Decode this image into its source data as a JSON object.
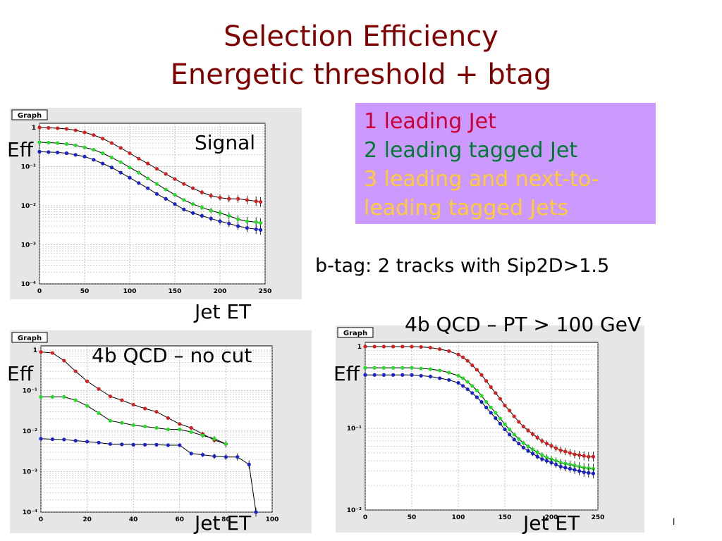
{
  "title_line1": "Selection Efficiency",
  "title_line2": "Energetic threshold + btag",
  "legend": {
    "item1": {
      "text": "1 leading Jet",
      "color": "#cc0033"
    },
    "item2": {
      "text": "2 leading tagged Jet",
      "color": "#007a33"
    },
    "item3_line1": {
      "text": "3 leading and next-to-",
      "color": "#ffcc33"
    },
    "item3_line2": {
      "text": "leading tagged Jets",
      "color": "#ffcc33"
    }
  },
  "btag_text": "b-tag: 2 tracks with Sip2D>1.5",
  "labels": {
    "eff": "Eff",
    "jet_et": "Jet ET",
    "signal": "Signal",
    "qcd_nocut": "4b QCD – no cut",
    "qcd_pt100": "4b QCD – PT > 100 GeV",
    "page_mark": "l"
  },
  "series_colors": [
    "#d42020",
    "#22dd22",
    "#1a22cc"
  ],
  "chart_data": [
    {
      "type": "line",
      "box_label": "Graph",
      "xlim": [
        0,
        250
      ],
      "ylim": [
        0.0001,
        1
      ],
      "log_y": true,
      "grid": true,
      "xticks": [
        "0",
        "50",
        "100",
        "150",
        "200",
        "250"
      ],
      "yticks": [
        "10⁻⁴",
        "10⁻³",
        "10⁻²",
        "10⁻¹",
        "1"
      ],
      "series": [
        {
          "x": [
            0,
            10,
            20,
            30,
            40,
            50,
            60,
            70,
            80,
            90,
            100,
            110,
            120,
            130,
            140,
            150,
            160,
            170,
            180,
            190,
            200,
            210,
            220,
            230,
            240,
            245
          ],
          "y": [
            1.0,
            0.98,
            0.96,
            0.92,
            0.85,
            0.75,
            0.64,
            0.52,
            0.4,
            0.3,
            0.22,
            0.16,
            0.12,
            0.088,
            0.065,
            0.048,
            0.036,
            0.028,
            0.022,
            0.018,
            0.016,
            0.015,
            0.015,
            0.014,
            0.013,
            0.0125
          ]
        },
        {
          "x": [
            0,
            10,
            20,
            30,
            40,
            50,
            60,
            70,
            80,
            90,
            100,
            110,
            120,
            130,
            140,
            150,
            160,
            170,
            180,
            190,
            200,
            210,
            220,
            230,
            240,
            245
          ],
          "y": [
            0.42,
            0.41,
            0.4,
            0.38,
            0.35,
            0.31,
            0.27,
            0.22,
            0.17,
            0.13,
            0.095,
            0.07,
            0.05,
            0.036,
            0.026,
            0.019,
            0.014,
            0.011,
            0.009,
            0.0075,
            0.0065,
            0.0055,
            0.0045,
            0.004,
            0.0038,
            0.0036
          ]
        },
        {
          "x": [
            0,
            10,
            20,
            30,
            40,
            50,
            60,
            70,
            80,
            90,
            100,
            110,
            120,
            130,
            140,
            150,
            160,
            170,
            180,
            190,
            200,
            210,
            220,
            230,
            240,
            245
          ],
          "y": [
            0.24,
            0.235,
            0.23,
            0.22,
            0.2,
            0.18,
            0.15,
            0.12,
            0.095,
            0.07,
            0.052,
            0.038,
            0.028,
            0.02,
            0.015,
            0.011,
            0.008,
            0.0065,
            0.0055,
            0.0047,
            0.004,
            0.0035,
            0.003,
            0.0027,
            0.0025,
            0.0024
          ]
        }
      ]
    },
    {
      "type": "line",
      "box_label": "Graph",
      "xlim": [
        0,
        100
      ],
      "ylim": [
        0.0001,
        1
      ],
      "log_y": true,
      "grid": true,
      "xticks": [
        "0",
        "20",
        "40",
        "60",
        "80",
        "100"
      ],
      "yticks": [
        "10⁻⁴",
        "10⁻³",
        "10⁻²",
        "10⁻¹",
        "1"
      ],
      "series": [
        {
          "x": [
            0,
            5,
            10,
            15,
            20,
            25,
            30,
            35,
            40,
            45,
            50,
            55,
            60,
            65,
            70,
            75,
            80
          ],
          "y": [
            0.9,
            0.85,
            0.55,
            0.3,
            0.17,
            0.11,
            0.072,
            0.058,
            0.045,
            0.036,
            0.03,
            0.021,
            0.015,
            0.012,
            0.0085,
            0.006,
            0.0048
          ]
        },
        {
          "x": [
            0,
            5,
            10,
            15,
            20,
            25,
            30,
            35,
            40,
            45,
            50,
            55,
            60,
            65,
            70,
            75,
            80
          ],
          "y": [
            0.07,
            0.07,
            0.07,
            0.058,
            0.042,
            0.028,
            0.018,
            0.016,
            0.014,
            0.013,
            0.012,
            0.011,
            0.011,
            0.0095,
            0.0078,
            0.0065,
            0.0048
          ]
        },
        {
          "x": [
            0,
            5,
            10,
            15,
            20,
            25,
            30,
            35,
            40,
            45,
            50,
            55,
            60,
            65,
            70,
            75,
            80,
            85,
            90,
            93
          ],
          "y": [
            0.0065,
            0.0063,
            0.0062,
            0.0058,
            0.0055,
            0.0052,
            0.0048,
            0.0047,
            0.0046,
            0.0046,
            0.0046,
            0.0045,
            0.0045,
            0.0028,
            0.0026,
            0.0024,
            0.0023,
            0.0023,
            0.0015,
            0.0001
          ]
        }
      ]
    },
    {
      "type": "line",
      "box_label": "Graph",
      "xlim": [
        0,
        250
      ],
      "ylim": [
        0.01,
        1
      ],
      "log_y": true,
      "grid": true,
      "xticks": [
        "0",
        "50",
        "100",
        "150",
        "200",
        "250"
      ],
      "yticks": [
        "10⁻²",
        "10⁻¹",
        "1"
      ],
      "series": [
        {
          "x": [
            0,
            10,
            20,
            30,
            40,
            50,
            60,
            70,
            80,
            90,
            100,
            105,
            110,
            115,
            120,
            125,
            130,
            135,
            140,
            145,
            150,
            155,
            160,
            165,
            170,
            175,
            180,
            185,
            190,
            195,
            200,
            205,
            210,
            215,
            220,
            225,
            230,
            235,
            240,
            245
          ],
          "y": [
            1.0,
            1.0,
            1.0,
            1.0,
            1.0,
            1.0,
            0.99,
            0.97,
            0.93,
            0.88,
            0.8,
            0.74,
            0.67,
            0.59,
            0.52,
            0.45,
            0.38,
            0.32,
            0.27,
            0.23,
            0.19,
            0.165,
            0.14,
            0.12,
            0.105,
            0.094,
            0.085,
            0.077,
            0.07,
            0.065,
            0.061,
            0.057,
            0.054,
            0.052,
            0.05,
            0.048,
            0.047,
            0.046,
            0.045,
            0.045
          ]
        },
        {
          "x": [
            0,
            10,
            20,
            30,
            40,
            50,
            60,
            70,
            80,
            90,
            100,
            105,
            110,
            115,
            120,
            125,
            130,
            135,
            140,
            145,
            150,
            155,
            160,
            165,
            170,
            175,
            180,
            185,
            190,
            195,
            200,
            205,
            210,
            215,
            220,
            225,
            230,
            235,
            240,
            245
          ],
          "y": [
            0.55,
            0.55,
            0.55,
            0.55,
            0.55,
            0.55,
            0.54,
            0.53,
            0.51,
            0.48,
            0.44,
            0.41,
            0.37,
            0.33,
            0.29,
            0.25,
            0.21,
            0.18,
            0.155,
            0.132,
            0.112,
            0.097,
            0.084,
            0.074,
            0.066,
            0.06,
            0.055,
            0.051,
            0.047,
            0.044,
            0.042,
            0.04,
            0.038,
            0.037,
            0.036,
            0.035,
            0.034,
            0.033,
            0.0325,
            0.032
          ]
        },
        {
          "x": [
            0,
            10,
            20,
            30,
            40,
            50,
            60,
            70,
            80,
            90,
            100,
            105,
            110,
            115,
            120,
            125,
            130,
            135,
            140,
            145,
            150,
            155,
            160,
            165,
            170,
            175,
            180,
            185,
            190,
            195,
            200,
            205,
            210,
            215,
            220,
            225,
            230,
            235,
            240,
            245
          ],
          "y": [
            0.45,
            0.45,
            0.45,
            0.45,
            0.45,
            0.45,
            0.44,
            0.43,
            0.41,
            0.39,
            0.36,
            0.33,
            0.3,
            0.27,
            0.24,
            0.21,
            0.18,
            0.155,
            0.133,
            0.114,
            0.097,
            0.084,
            0.073,
            0.065,
            0.058,
            0.053,
            0.049,
            0.045,
            0.042,
            0.04,
            0.038,
            0.036,
            0.034,
            0.033,
            0.032,
            0.031,
            0.03,
            0.029,
            0.0285,
            0.028
          ]
        }
      ]
    }
  ]
}
